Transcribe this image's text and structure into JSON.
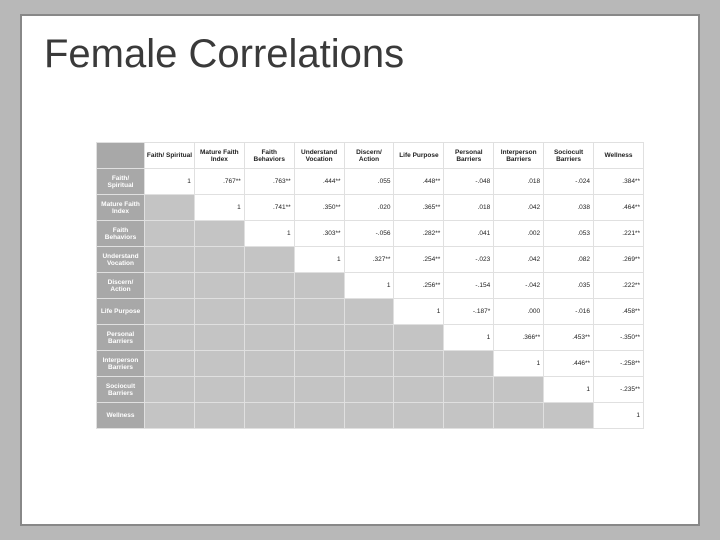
{
  "slide": {
    "title": "Female Correlations",
    "background": "#ffffff",
    "border_color": "#888888"
  },
  "table": {
    "type": "table",
    "header_bg": "#a8a8a8",
    "header_fg": "#ffffff",
    "shaded_bg": "#c4c4c4",
    "cell_border": "#e0e0e0",
    "font_size_pt": 6.5,
    "columns": [
      "",
      "Faith/ Spiritual",
      "Mature Faith Index",
      "Faith Behaviors",
      "Understand Vocation",
      "Discern/ Action",
      "Life Purpose",
      "Personal Barriers",
      "Interperson Barriers",
      "Sociocult Barriers",
      "Wellness"
    ],
    "rows": [
      {
        "label": "Faith/ Spiritual",
        "values": [
          "1",
          ".767**",
          ".763**",
          ".444**",
          ".055",
          ".448**",
          "-.048",
          ".018",
          "-.024",
          ".384**"
        ]
      },
      {
        "label": "Mature Faith Index",
        "values": [
          "",
          "1",
          ".741**",
          ".350**",
          ".020",
          ".365**",
          ".018",
          ".042",
          ".038",
          ".464**"
        ]
      },
      {
        "label": "Faith Behaviors",
        "values": [
          "",
          "",
          "1",
          ".303**",
          "-.056",
          ".282**",
          ".041",
          ".002",
          ".053",
          ".221**"
        ]
      },
      {
        "label": "Understand Vocation",
        "values": [
          "",
          "",
          "",
          "1",
          ".327**",
          ".254**",
          "-.023",
          ".042",
          ".082",
          ".269**"
        ]
      },
      {
        "label": "Discern/ Action",
        "values": [
          "",
          "",
          "",
          "",
          "1",
          ".256**",
          "-.154",
          "-.042",
          ".035",
          ".222**"
        ]
      },
      {
        "label": "Life Purpose",
        "values": [
          "",
          "",
          "",
          "",
          "",
          "1",
          "-.187*",
          ".000",
          "-.016",
          ".458**"
        ]
      },
      {
        "label": "Personal Barriers",
        "values": [
          "",
          "",
          "",
          "",
          "",
          "",
          "1",
          ".366**",
          ".453**",
          "-.350**"
        ]
      },
      {
        "label": "Interperson Barriers",
        "values": [
          "",
          "",
          "",
          "",
          "",
          "",
          "",
          "1",
          ".446**",
          "-.258**"
        ]
      },
      {
        "label": "Sociocult Barriers",
        "values": [
          "",
          "",
          "",
          "",
          "",
          "",
          "",
          "",
          "1",
          "-.235**"
        ]
      },
      {
        "label": "Wellness",
        "values": [
          "",
          "",
          "",
          "",
          "",
          "",
          "",
          "",
          "",
          "1"
        ]
      }
    ]
  }
}
